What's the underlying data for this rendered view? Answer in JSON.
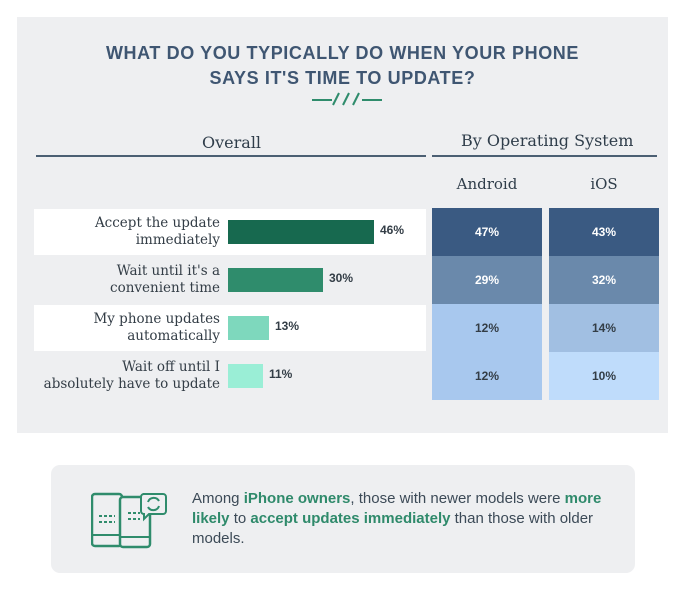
{
  "chart_data": {
    "type": "bar",
    "title_line1": "WHAT DO YOU TYPICALLY DO WHEN YOUR PHONE",
    "title_line2": "SAYS IT'S TIME TO UPDATE?",
    "overall_header": "Overall",
    "os_header": "By Operating System",
    "os_columns": [
      "Android",
      "iOS"
    ],
    "categories": [
      [
        "Accept the update",
        "immediately"
      ],
      [
        "Wait until it's a",
        "convenient time"
      ],
      [
        "My phone updates",
        "automatically"
      ],
      [
        "Wait off until I",
        "absolutely have to update"
      ]
    ],
    "series": [
      {
        "values": [
          46,
          30,
          13,
          11
        ],
        "labels": [
          "46%",
          "30%",
          "13%",
          "11%"
        ]
      },
      {
        "name": "Android",
        "values": [
          47,
          29,
          12,
          12
        ],
        "labels": [
          "47%",
          "29%",
          "12%",
          "12%"
        ]
      },
      {
        "name": "iOS",
        "values": [
          43,
          32,
          14,
          10
        ],
        "labels": [
          "43%",
          "32%",
          "14%",
          "10%"
        ]
      }
    ],
    "bar_colors": [
      "#17694f",
      "#2f8c6c",
      "#7ed8bd",
      "#9aeed6"
    ]
  },
  "note": {
    "icon": "phone-update-icon",
    "t1": "Among ",
    "h1": "iPhone owners",
    "t2": ", those with newer models were ",
    "h2": "more likely",
    "t3": " to ",
    "h3": "accept updates immediately",
    "t4": " than those with older models."
  }
}
